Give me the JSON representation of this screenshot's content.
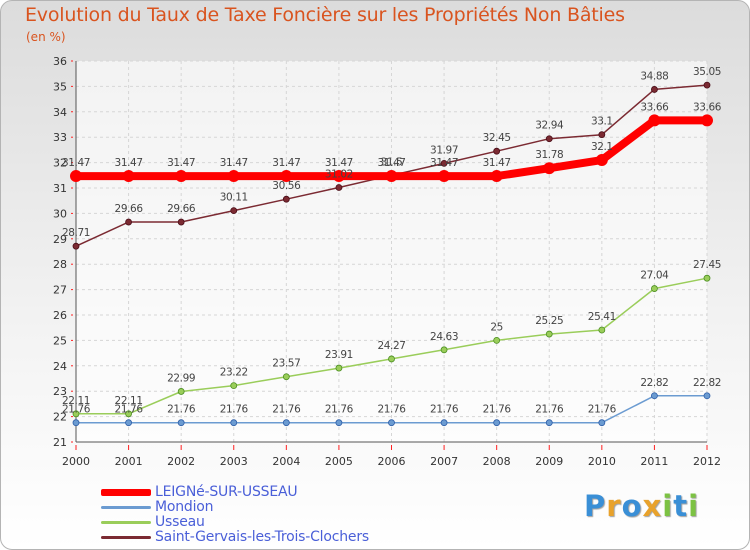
{
  "header": {
    "title": "Evolution du Taux de Taxe Foncière sur les Propriétés Non Bâties",
    "unit": "(en %)"
  },
  "chart_data": {
    "type": "line",
    "title": "Evolution du Taux de Taxe Foncière sur les Propriétés Non Bâties",
    "ylabel": "(en %)",
    "xlabel": "",
    "ylim": [
      21,
      36
    ],
    "yticks": [
      21,
      22,
      23,
      24,
      25,
      26,
      27,
      28,
      29,
      30,
      31,
      32,
      33,
      34,
      35,
      36
    ],
    "categories": [
      "2000",
      "2001",
      "2002",
      "2003",
      "2004",
      "2005",
      "2006",
      "2007",
      "2008",
      "2009",
      "2010",
      "2011",
      "2012"
    ],
    "grid": true,
    "series": [
      {
        "name": "LEIGNé-SUR-USSEAU",
        "color": "#ff0000",
        "values": [
          31.47,
          31.47,
          31.47,
          31.47,
          31.47,
          31.47,
          31.47,
          31.47,
          31.47,
          31.78,
          32.1,
          33.66,
          33.66
        ],
        "labels": [
          "31.47",
          "31.47",
          "31.47",
          "31.47",
          "31.47",
          "31.47",
          "31.47",
          "31.47",
          "31.47",
          "31.78",
          "32.1",
          "33.66",
          "33.66"
        ]
      },
      {
        "name": "Mondion",
        "color": "#6b9bd1",
        "values": [
          21.76,
          21.76,
          21.76,
          21.76,
          21.76,
          21.76,
          21.76,
          21.76,
          21.76,
          21.76,
          21.76,
          22.82,
          22.82
        ],
        "labels": [
          "21.76",
          "21.76",
          "21.76",
          "21.76",
          "21.76",
          "21.76",
          "21.76",
          "21.76",
          "21.76",
          "21.76",
          "21.76",
          "22.82",
          "22.82"
        ]
      },
      {
        "name": "Usseau",
        "color": "#9acd5a",
        "values": [
          22.11,
          22.11,
          22.99,
          23.22,
          23.57,
          23.91,
          24.27,
          24.63,
          25,
          25.25,
          25.41,
          27.04,
          27.45
        ],
        "labels": [
          "22.11",
          "22.11",
          "22.99",
          "23.22",
          "23.57",
          "23.91",
          "24.27",
          "24.63",
          "25",
          "25.25",
          "25.41",
          "27.04",
          "27.45"
        ]
      },
      {
        "name": "Saint-Gervais-les-Trois-Clochers",
        "color": "#7b2a32",
        "values": [
          28.71,
          29.66,
          29.66,
          30.11,
          30.56,
          31.02,
          31.5,
          31.97,
          32.45,
          32.94,
          33.1,
          34.88,
          35.05
        ],
        "labels": [
          "28.71",
          "29.66",
          "29.66",
          "30.11",
          "30.56",
          "31.02",
          "31.5",
          "31.97",
          "32.45",
          "32.94",
          "33.1",
          "34.88",
          "35.05"
        ]
      }
    ]
  },
  "legend": {
    "items": [
      {
        "label": "LEIGNé-SUR-USSEAU",
        "color": "#ff0000"
      },
      {
        "label": "Mondion",
        "color": "#6b9bd1"
      },
      {
        "label": "Usseau",
        "color": "#9acd5a"
      },
      {
        "label": "Saint-Gervais-les-Trois-Clochers",
        "color": "#7b2a32"
      }
    ]
  },
  "logo": {
    "letters": [
      "P",
      "r",
      "o",
      "x",
      "i",
      "t",
      "i"
    ],
    "colors": [
      "#3a8fd6",
      "#e8a22c",
      "#3a8fd6",
      "#e8a22c",
      "#7cc243",
      "#3a8fd6",
      "#7cc243"
    ]
  }
}
